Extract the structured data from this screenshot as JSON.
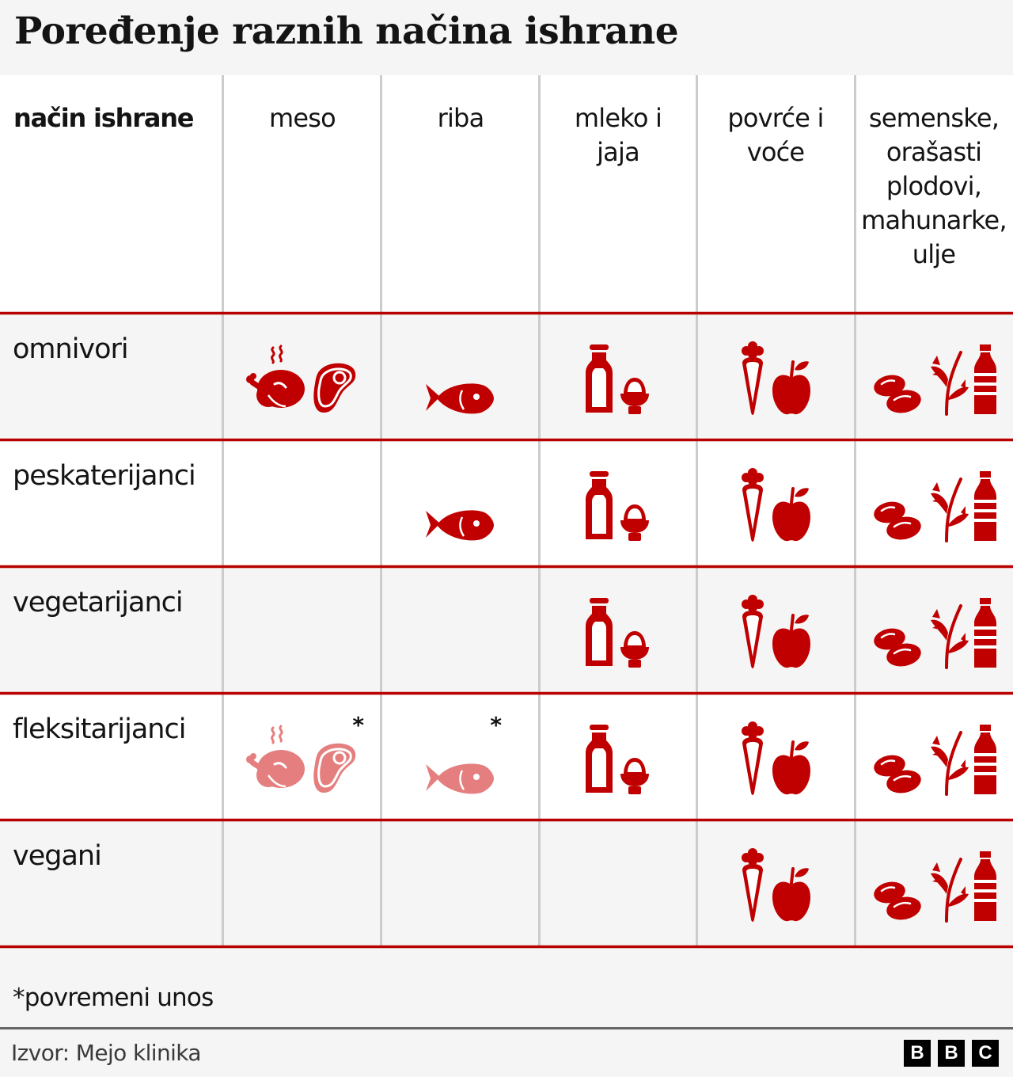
{
  "title": "Poređenje raznih načina ishrane",
  "colors": {
    "accent_red": "#c00000",
    "faded_red": "#e57f7f",
    "row_divider": "#b80000",
    "shaded_row": "#f5f5f5",
    "column_divider": "#cccccc"
  },
  "columns": [
    {
      "key": "diet",
      "label": "način ishrane"
    },
    {
      "key": "meat",
      "label": "meso",
      "icons": [
        "roast-chicken-icon",
        "steak-icon"
      ]
    },
    {
      "key": "fish",
      "label": "riba",
      "icons": [
        "fish-icon"
      ]
    },
    {
      "key": "dairy",
      "label": "mleko i jaja",
      "icons": [
        "milk-bottle-icon",
        "egg-cup-icon"
      ]
    },
    {
      "key": "produce",
      "label": "povrće i voće",
      "icons": [
        "carrot-icon",
        "apple-icon"
      ]
    },
    {
      "key": "plants",
      "label": "semenske, orašasti plodovi, mahunarke, ulje",
      "icons": [
        "beans-icon",
        "herb-sprig-icon",
        "oil-bottle-icon"
      ]
    }
  ],
  "header_lines": {
    "diet": [
      "način ishrane"
    ],
    "meat": [
      "meso"
    ],
    "fish": [
      "riba"
    ],
    "dairy": [
      "mleko i",
      "jaja"
    ],
    "produce": [
      "povrće i",
      "voće"
    ],
    "plants": [
      "semenske,",
      "orašasti",
      "plodovi,",
      "mahunarke,",
      "ulje"
    ]
  },
  "rows": [
    {
      "label": "omnivori",
      "meat": "yes",
      "fish": "yes",
      "dairy": "yes",
      "produce": "yes",
      "plants": "yes"
    },
    {
      "label": "peskaterijanci",
      "meat": "no",
      "fish": "yes",
      "dairy": "yes",
      "produce": "yes",
      "plants": "yes"
    },
    {
      "label": "vegetarijanci",
      "meat": "no",
      "fish": "no",
      "dairy": "yes",
      "produce": "yes",
      "plants": "yes"
    },
    {
      "label": "fleksitarijanci",
      "meat": "occasional",
      "fish": "occasional",
      "dairy": "yes",
      "produce": "yes",
      "plants": "yes"
    },
    {
      "label": "vegani",
      "meat": "no",
      "fish": "no",
      "dairy": "no",
      "produce": "yes",
      "plants": "yes"
    }
  ],
  "occasional_marker": "*",
  "footnote": "*povremeni unos",
  "source": "Izvor: Mejo klinika",
  "logo": [
    "B",
    "B",
    "C"
  ],
  "chart_data": {
    "type": "table",
    "title": "Poređenje raznih načina ishrane",
    "columns": [
      "način ishrane",
      "meso",
      "riba",
      "mleko i jaja",
      "povrće i voće",
      "semenske, orašasti plodovi, mahunarke, ulje"
    ],
    "rows": [
      [
        "omnivori",
        "da",
        "da",
        "da",
        "da",
        "da"
      ],
      [
        "peskaterijanci",
        "ne",
        "da",
        "da",
        "da",
        "da"
      ],
      [
        "vegetarijanci",
        "ne",
        "ne",
        "da",
        "da",
        "da"
      ],
      [
        "fleksitarijanci",
        "povremeno*",
        "povremeno*",
        "da",
        "da",
        "da"
      ],
      [
        "vegani",
        "ne",
        "ne",
        "ne",
        "da",
        "da"
      ]
    ],
    "legend": "*povremeni unos",
    "source": "Izvor: Mejo klinika"
  }
}
